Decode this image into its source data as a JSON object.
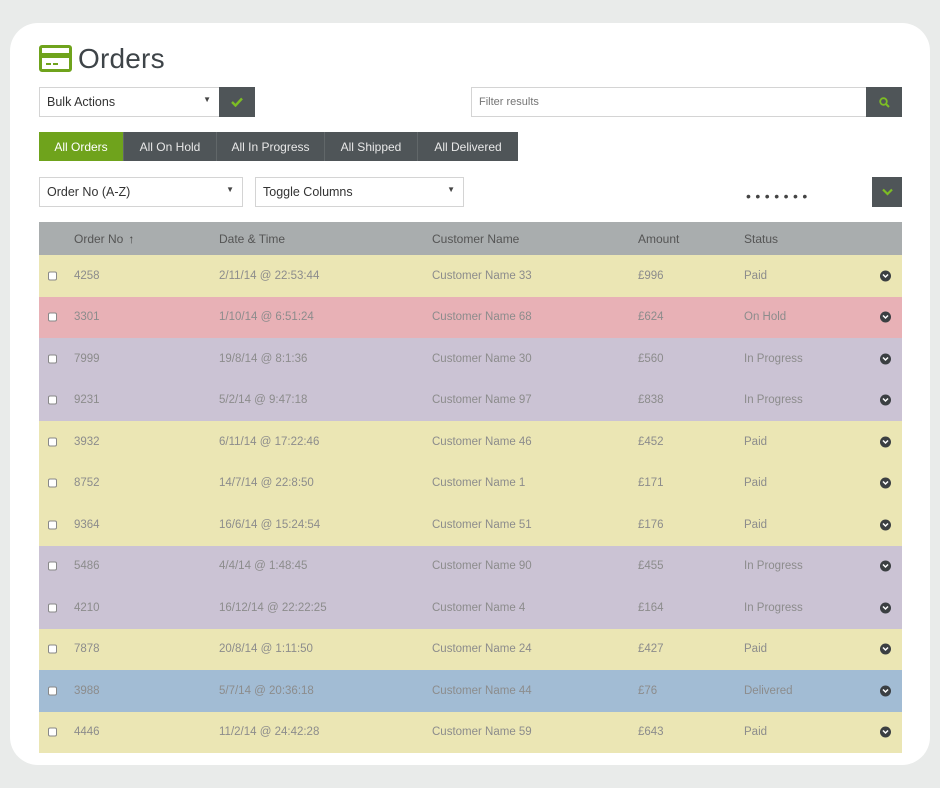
{
  "page": {
    "title": "Orders"
  },
  "toolbar": {
    "bulk_label": "Bulk Actions",
    "filter_placeholder": "Filter results"
  },
  "tabs": [
    {
      "label": "All Orders",
      "active": true
    },
    {
      "label": "All On Hold"
    },
    {
      "label": "All In Progress"
    },
    {
      "label": "All Shipped"
    },
    {
      "label": "All Delivered"
    }
  ],
  "controls": {
    "sort_label": "Order No (A-Z)",
    "columns_label": "Toggle Columns",
    "more_dots": "•••••••"
  },
  "table": {
    "headers": {
      "order": "Order No",
      "sort_arrow": "↑",
      "date": "Date & Time",
      "customer": "Customer Name",
      "amount": "Amount",
      "status": "Status"
    },
    "rows": [
      {
        "order": "4258",
        "date": "2/11/14 @ 22:53:44",
        "customer": "Customer Name 33",
        "amount": "£996",
        "status": "Paid"
      },
      {
        "order": "3301",
        "date": "1/10/14 @ 6:51:24",
        "customer": "Customer Name 68",
        "amount": "£624",
        "status": "On Hold"
      },
      {
        "order": "7999",
        "date": "19/8/14 @ 8:1:36",
        "customer": "Customer Name 30",
        "amount": "£560",
        "status": "In Progress"
      },
      {
        "order": "9231",
        "date": "5/2/14 @ 9:47:18",
        "customer": "Customer Name 97",
        "amount": "£838",
        "status": "In Progress"
      },
      {
        "order": "3932",
        "date": "6/11/14 @ 17:22:46",
        "customer": "Customer Name 46",
        "amount": "£452",
        "status": "Paid"
      },
      {
        "order": "8752",
        "date": "14/7/14 @ 22:8:50",
        "customer": "Customer Name 1",
        "amount": "£171",
        "status": "Paid"
      },
      {
        "order": "9364",
        "date": "16/6/14 @ 15:24:54",
        "customer": "Customer Name 51",
        "amount": "£176",
        "status": "Paid"
      },
      {
        "order": "5486",
        "date": "4/4/14 @ 1:48:45",
        "customer": "Customer Name 90",
        "amount": "£455",
        "status": "In Progress"
      },
      {
        "order": "4210",
        "date": "16/12/14 @ 22:22:25",
        "customer": "Customer Name 4",
        "amount": "£164",
        "status": "In Progress"
      },
      {
        "order": "7878",
        "date": "20/8/14 @ 1:11:50",
        "customer": "Customer Name 24",
        "amount": "£427",
        "status": "Paid"
      },
      {
        "order": "3988",
        "date": "5/7/14 @ 20:36:18",
        "customer": "Customer Name 44",
        "amount": "£76",
        "status": "Delivered"
      },
      {
        "order": "4446",
        "date": "11/2/14 @ 24:42:28",
        "customer": "Customer Name 59",
        "amount": "£643",
        "status": "Paid"
      }
    ]
  },
  "colors": {
    "accent": "#6fa31c",
    "dark": "#4f5558",
    "paid": "#ebe6b4",
    "on_hold": "#e8b1b6",
    "in_progress": "#cbc3d4",
    "delivered": "#a2bcd4"
  },
  "icons": {
    "title": "credit-card-icon",
    "apply": "check-icon",
    "search": "search-icon",
    "expand": "chevron-down-icon",
    "row_toggle": "chevron-circle-icon"
  }
}
